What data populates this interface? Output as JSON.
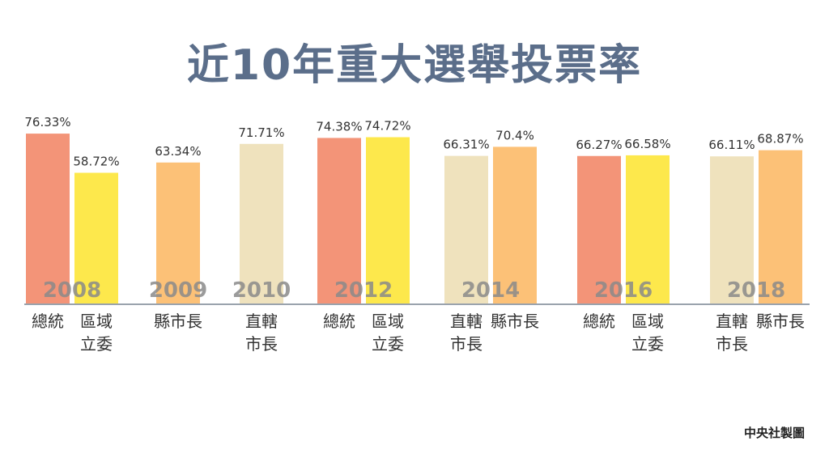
{
  "title": "近10年重大選舉投票率",
  "source": "中央社製圖",
  "chart_data": {
    "type": "bar",
    "title": "近10年重大選舉投票率",
    "ylim": [
      0,
      80
    ],
    "grid": false,
    "legend": "none",
    "groups": [
      {
        "year": "2008",
        "bars": [
          {
            "label": [
              "總統"
            ],
            "value": 76.33,
            "value_label": "76.33%",
            "color": "#f39478"
          },
          {
            "label": [
              "區域",
              "立委"
            ],
            "value": 58.72,
            "value_label": "58.72%",
            "color": "#fde84c"
          }
        ]
      },
      {
        "year": "2009",
        "bars": [
          {
            "label": [
              "縣市長"
            ],
            "value": 63.34,
            "value_label": "63.34%",
            "color": "#fcc177"
          }
        ]
      },
      {
        "year": "2010",
        "bars": [
          {
            "label": [
              "直轄",
              "市長"
            ],
            "value": 71.71,
            "value_label": "71.71%",
            "color": "#efe2bd"
          }
        ]
      },
      {
        "year": "2012",
        "bars": [
          {
            "label": [
              "總統"
            ],
            "value": 74.38,
            "value_label": "74.38%",
            "color": "#f39478"
          },
          {
            "label": [
              "區域",
              "立委"
            ],
            "value": 74.72,
            "value_label": "74.72%",
            "color": "#fde84c"
          }
        ]
      },
      {
        "year": "2014",
        "bars": [
          {
            "label": [
              "直轄",
              "市長"
            ],
            "value": 66.31,
            "value_label": "66.31%",
            "color": "#efe2bd"
          },
          {
            "label": [
              "縣市長"
            ],
            "value": 70.4,
            "value_label": "70.4%",
            "color": "#fcc177"
          }
        ]
      },
      {
        "year": "2016",
        "bars": [
          {
            "label": [
              "總統"
            ],
            "value": 66.27,
            "value_label": "66.27%",
            "color": "#f39478"
          },
          {
            "label": [
              "區域",
              "立委"
            ],
            "value": 66.58,
            "value_label": "66.58%",
            "color": "#fde84c"
          }
        ]
      },
      {
        "year": "2018",
        "bars": [
          {
            "label": [
              "直轄",
              "市長"
            ],
            "value": 66.11,
            "value_label": "66.11%",
            "color": "#efe2bd"
          },
          {
            "label": [
              "縣市長"
            ],
            "value": 68.87,
            "value_label": "68.87%",
            "color": "#fcc177"
          }
        ]
      }
    ],
    "colors": {
      "president": "#f39478",
      "legislator": "#fde84c",
      "county": "#fcc177",
      "municipal": "#efe2bd",
      "year_text": "#8a8a8a",
      "axis": "#9aa3ad"
    }
  }
}
